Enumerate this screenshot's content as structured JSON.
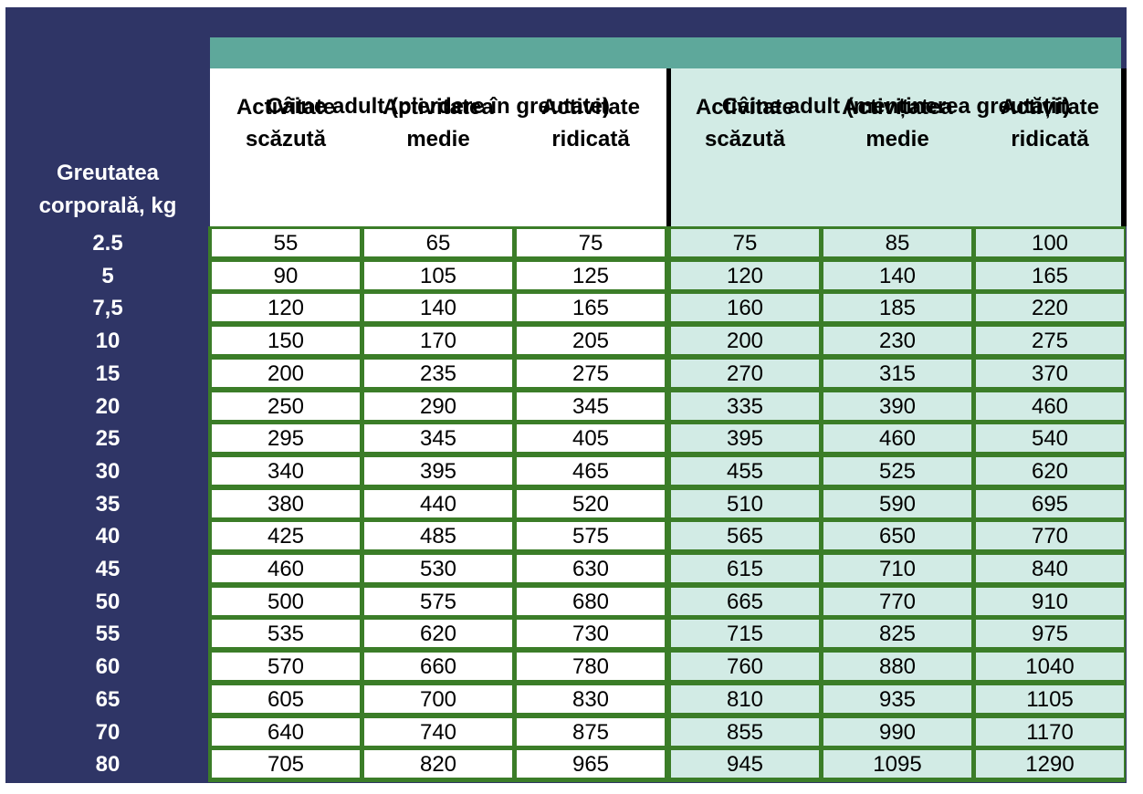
{
  "table": {
    "row_header": [
      "Greutatea",
      "corporală, kg"
    ],
    "groups": [
      {
        "title": "Câine adult (pierdere în greutate)",
        "style": "white"
      },
      {
        "title": "Câine adult (menținerea greutății)",
        "style": "green"
      }
    ],
    "columns": [
      [
        "Activitate",
        "scăzută"
      ],
      [
        "Activitatea",
        "medie"
      ],
      [
        "Activitate",
        "ridicată"
      ],
      [
        "Activitate",
        "scăzută"
      ],
      [
        "Activitatea",
        "medie"
      ],
      [
        "Activitate",
        "ridicată"
      ]
    ],
    "rows": [
      {
        "weight": "2.5",
        "values": [
          "55",
          "65",
          "75",
          "75",
          "85",
          "100"
        ]
      },
      {
        "weight": "5",
        "values": [
          "90",
          "105",
          "125",
          "120",
          "140",
          "165"
        ]
      },
      {
        "weight": "7,5",
        "values": [
          "120",
          "140",
          "165",
          "160",
          "185",
          "220"
        ]
      },
      {
        "weight": "10",
        "values": [
          "150",
          "170",
          "205",
          "200",
          "230",
          "275"
        ]
      },
      {
        "weight": "15",
        "values": [
          "200",
          "235",
          "275",
          "270",
          "315",
          "370"
        ]
      },
      {
        "weight": "20",
        "values": [
          "250",
          "290",
          "345",
          "335",
          "390",
          "460"
        ]
      },
      {
        "weight": "25",
        "values": [
          "295",
          "345",
          "405",
          "395",
          "460",
          "540"
        ]
      },
      {
        "weight": "30",
        "values": [
          "340",
          "395",
          "465",
          "455",
          "525",
          "620"
        ]
      },
      {
        "weight": "35",
        "values": [
          "380",
          "440",
          "520",
          "510",
          "590",
          "695"
        ]
      },
      {
        "weight": "40",
        "values": [
          "425",
          "485",
          "575",
          "565",
          "650",
          "770"
        ]
      },
      {
        "weight": "45",
        "values": [
          "460",
          "530",
          "630",
          "615",
          "710",
          "840"
        ]
      },
      {
        "weight": "50",
        "values": [
          "500",
          "575",
          "680",
          "665",
          "770",
          "910"
        ]
      },
      {
        "weight": "55",
        "values": [
          "535",
          "620",
          "730",
          "715",
          "825",
          "975"
        ]
      },
      {
        "weight": "60",
        "values": [
          "570",
          "660",
          "780",
          "760",
          "880",
          "1040"
        ]
      },
      {
        "weight": "65",
        "values": [
          "605",
          "700",
          "830",
          "810",
          "935",
          "1105"
        ]
      },
      {
        "weight": "70",
        "values": [
          "640",
          "740",
          "875",
          "855",
          "990",
          "1170"
        ]
      },
      {
        "weight": "80",
        "values": [
          "705",
          "820",
          "965",
          "945",
          "1095",
          "1290"
        ]
      }
    ]
  },
  "colors": {
    "frame": "#2f3566",
    "teal_bar": "#5ea89b",
    "grid_lines": "#3b7d28",
    "light_green": "#d2ebe5"
  }
}
